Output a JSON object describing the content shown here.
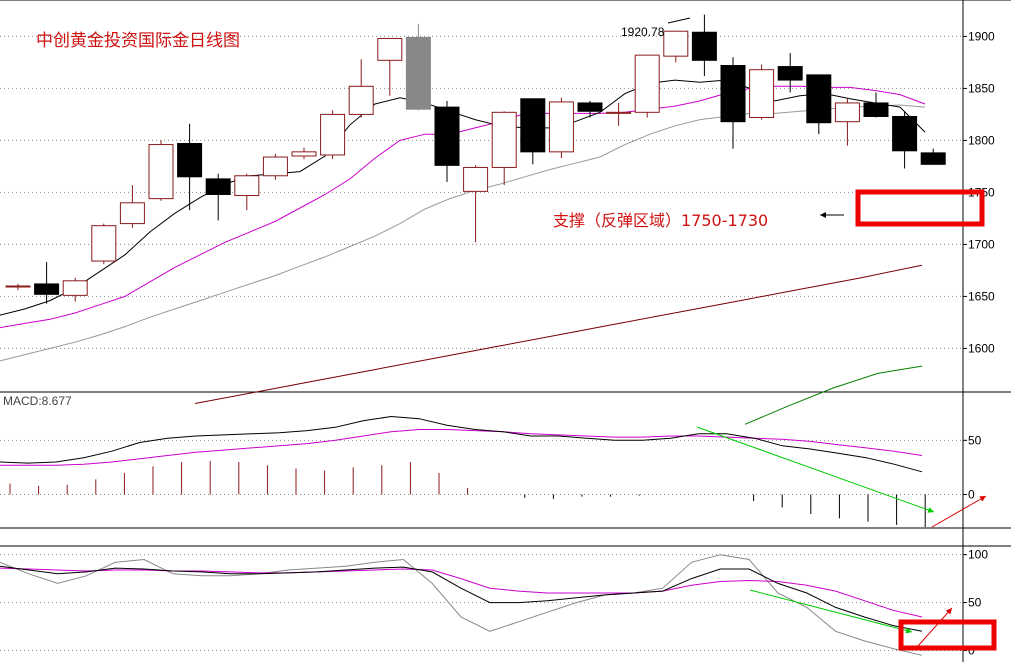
{
  "title": "中创黄金投资国际金日线图",
  "support_label": "支撑（反弹区域）1750-1730",
  "peak_label": "1920.78",
  "macd_label": "MACD:8.677",
  "colors": {
    "up": "#8b1a1a",
    "down": "#000000",
    "ma5": "#000000",
    "ma10": "#cc00cc",
    "ma20": "#999999",
    "ma60": "#7a0000",
    "ma120": "#008000",
    "arrow_green": "#00cc00",
    "arrow_red": "#dd0000",
    "box": "#ee0000",
    "grid": "#888888"
  },
  "chart_data": [
    {
      "type": "candlestick",
      "title": "中创黄金投资国际金日线图",
      "ylim": [
        1560,
        1935
      ],
      "y_ticks": [
        1600,
        1650,
        1700,
        1750,
        1800,
        1850,
        1900
      ],
      "candles": [
        {
          "o": 1660,
          "h": 1662,
          "l": 1656,
          "c": 1660,
          "up": true
        },
        {
          "o": 1662,
          "h": 1683,
          "l": 1643,
          "c": 1652,
          "up": false
        },
        {
          "o": 1651,
          "h": 1668,
          "l": 1645,
          "c": 1665,
          "up": true
        },
        {
          "o": 1684,
          "h": 1720,
          "l": 1681,
          "c": 1718,
          "up": true
        },
        {
          "o": 1720,
          "h": 1757,
          "l": 1716,
          "c": 1740,
          "up": true
        },
        {
          "o": 1744,
          "h": 1800,
          "l": 1742,
          "c": 1796,
          "up": true
        },
        {
          "o": 1797,
          "h": 1816,
          "l": 1733,
          "c": 1765,
          "up": false
        },
        {
          "o": 1763,
          "h": 1768,
          "l": 1723,
          "c": 1748,
          "up": false
        },
        {
          "o": 1747,
          "h": 1768,
          "l": 1733,
          "c": 1766,
          "up": true
        },
        {
          "o": 1766,
          "h": 1787,
          "l": 1762,
          "c": 1784,
          "up": true
        },
        {
          "o": 1785,
          "h": 1793,
          "l": 1782,
          "c": 1789,
          "up": true
        },
        {
          "o": 1786,
          "h": 1829,
          "l": 1782,
          "c": 1825,
          "up": true
        },
        {
          "o": 1825,
          "h": 1878,
          "l": 1822,
          "c": 1852,
          "up": true
        },
        {
          "o": 1877,
          "h": 1898,
          "l": 1843,
          "c": 1898,
          "up": true
        },
        {
          "o": 1899,
          "h": 1912,
          "l": 1829,
          "c": 1830,
          "up": false,
          "gray": true
        },
        {
          "o": 1832,
          "h": 1838,
          "l": 1760,
          "c": 1776,
          "up": false
        },
        {
          "o": 1751,
          "h": 1776,
          "l": 1702,
          "c": 1774,
          "up": true
        },
        {
          "o": 1774,
          "h": 1828,
          "l": 1757,
          "c": 1827,
          "up": true
        },
        {
          "o": 1840,
          "h": 1840,
          "l": 1777,
          "c": 1789,
          "up": false
        },
        {
          "o": 1789,
          "h": 1841,
          "l": 1783,
          "c": 1837,
          "up": true
        },
        {
          "o": 1836,
          "h": 1838,
          "l": 1822,
          "c": 1828,
          "up": false
        },
        {
          "o": 1826,
          "h": 1836,
          "l": 1814,
          "c": 1827,
          "up": true
        },
        {
          "o": 1827,
          "h": 1882,
          "l": 1822,
          "c": 1882,
          "up": true
        },
        {
          "o": 1881,
          "h": 1905,
          "l": 1875,
          "c": 1905,
          "up": true
        },
        {
          "o": 1904,
          "h": 1921,
          "l": 1862,
          "c": 1877,
          "up": false
        },
        {
          "o": 1872,
          "h": 1880,
          "l": 1792,
          "c": 1818,
          "up": false
        },
        {
          "o": 1822,
          "h": 1873,
          "l": 1820,
          "c": 1868,
          "up": true
        },
        {
          "o": 1871,
          "h": 1884,
          "l": 1846,
          "c": 1858,
          "up": false
        },
        {
          "o": 1863,
          "h": 1863,
          "l": 1806,
          "c": 1817,
          "up": false
        },
        {
          "o": 1818,
          "h": 1840,
          "l": 1795,
          "c": 1836,
          "up": true
        },
        {
          "o": 1836,
          "h": 1846,
          "l": 1822,
          "c": 1823,
          "up": false
        },
        {
          "o": 1823,
          "h": 1828,
          "l": 1773,
          "c": 1790,
          "up": false
        },
        {
          "o": 1788,
          "h": 1792,
          "l": 1777,
          "c": 1777,
          "up": false
        }
      ],
      "ma5": [
        1632,
        1638,
        1646,
        1658,
        1674,
        1690,
        1712,
        1730,
        1745,
        1758,
        1766,
        1768,
        1770,
        1785,
        1815,
        1835,
        1841,
        1836,
        1828,
        1820,
        1814,
        1812,
        1812,
        1818,
        1827,
        1845,
        1855,
        1858,
        1856,
        1858,
        1850,
        1838,
        1843,
        1845,
        1840,
        1836,
        1832,
        1808
      ],
      "ma10": [
        1620,
        1624,
        1628,
        1634,
        1642,
        1650,
        1664,
        1678,
        1690,
        1702,
        1712,
        1722,
        1735,
        1748,
        1763,
        1783,
        1800,
        1806,
        1806,
        1812,
        1818,
        1826,
        1826,
        1826,
        1826,
        1827,
        1830,
        1833,
        1838,
        1845,
        1850,
        1852,
        1852,
        1851,
        1851,
        1848,
        1844,
        1835
      ],
      "ma20": [
        1588,
        1594,
        1600,
        1606,
        1613,
        1621,
        1630,
        1638,
        1646,
        1654,
        1662,
        1670,
        1679,
        1688,
        1698,
        1708,
        1720,
        1734,
        1744,
        1752,
        1758,
        1765,
        1772,
        1778,
        1784,
        1796,
        1806,
        1814,
        1820,
        1823,
        1826,
        1826,
        1828,
        1830,
        1832,
        1833,
        1834,
        1832
      ],
      "ma60": [
        1547,
        1558,
        1569,
        1580,
        1591,
        1602,
        1613,
        1624,
        1635,
        1646,
        1657,
        1668,
        1680
      ],
      "ma60_x_start": 195,
      "ma120": [
        1527,
        1545,
        1562,
        1576,
        1583
      ],
      "ma120_x_start": 745
    },
    {
      "type": "line",
      "title": "MACD:8.677",
      "ylim": [
        -30,
        78
      ],
      "y_ticks": [
        0,
        50
      ],
      "dif": [
        30,
        29,
        30,
        34,
        40,
        48,
        52,
        54,
        55,
        56,
        57,
        59,
        62,
        68,
        72,
        70,
        64,
        60,
        58,
        54,
        54,
        52,
        50,
        50,
        52,
        56,
        56,
        52,
        45,
        42,
        38,
        34,
        28,
        21
      ],
      "dea": [
        27,
        27,
        27,
        28,
        30,
        33,
        36,
        39,
        41,
        43,
        45,
        47,
        50,
        54,
        58,
        60,
        60,
        59,
        58,
        56,
        55,
        54,
        53,
        53,
        54,
        54,
        53,
        52,
        51,
        49,
        46,
        43,
        40,
        36
      ],
      "histogram": [
        10,
        8,
        9,
        14,
        20,
        26,
        30,
        31,
        30,
        27,
        24,
        22,
        25,
        27,
        30,
        20,
        6,
        0,
        -3,
        -4,
        -2,
        -2,
        -1,
        0,
        0,
        0,
        -6,
        -12,
        -18,
        -22,
        -25,
        -28,
        -30
      ]
    },
    {
      "type": "line",
      "title": "",
      "ylim": [
        -12,
        108
      ],
      "y_ticks": [
        0,
        50,
        100
      ],
      "k": [
        88,
        84,
        80,
        82,
        86,
        85,
        83,
        82,
        80,
        80,
        81,
        82,
        84,
        86,
        87,
        82,
        65,
        50,
        50,
        52,
        55,
        58,
        60,
        62,
        75,
        85,
        85,
        70,
        60,
        45,
        35,
        26,
        20
      ],
      "d": [
        86,
        85,
        84,
        83,
        84,
        84,
        83,
        83,
        82,
        81,
        81,
        82,
        83,
        84,
        85,
        84,
        75,
        65,
        62,
        60,
        60,
        60,
        60,
        62,
        68,
        72,
        73,
        72,
        68,
        62,
        52,
        42,
        35
      ],
      "j": [
        92,
        80,
        70,
        78,
        92,
        95,
        80,
        78,
        78,
        80,
        84,
        86,
        88,
        92,
        95,
        70,
        35,
        20,
        30,
        40,
        50,
        58,
        60,
        65,
        92,
        100,
        95,
        60,
        45,
        20,
        10,
        2,
        -5
      ]
    }
  ]
}
